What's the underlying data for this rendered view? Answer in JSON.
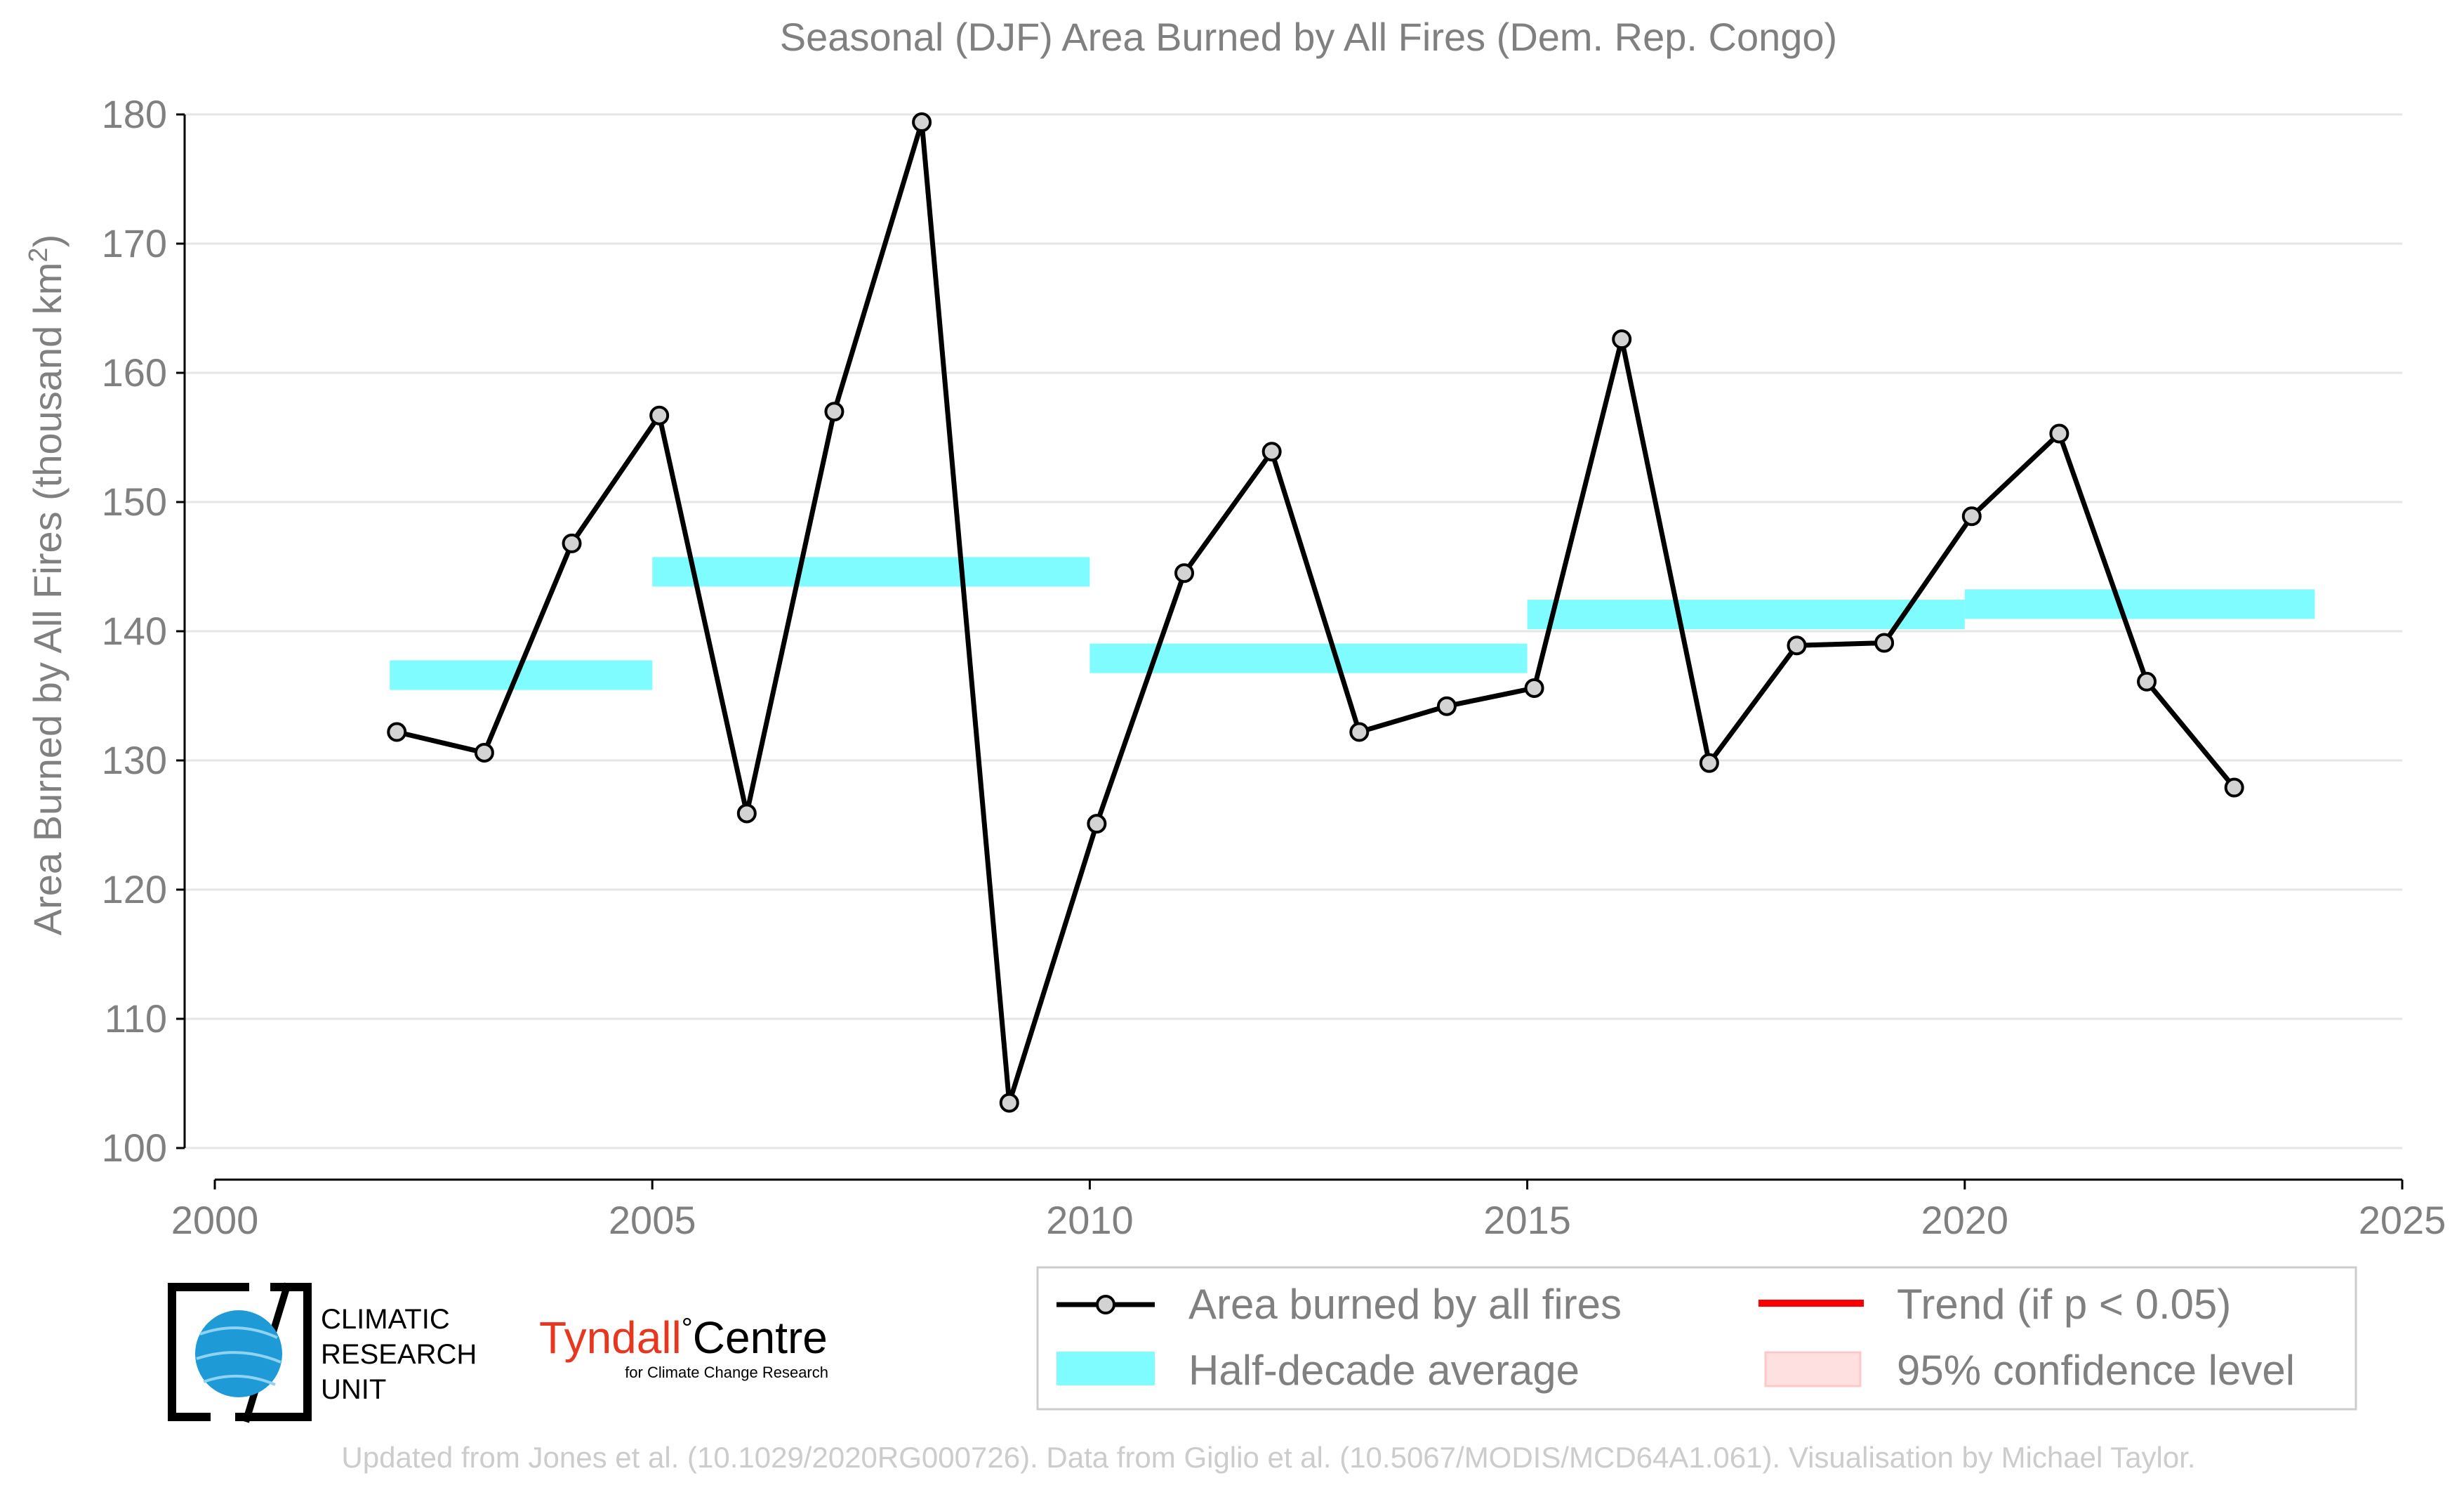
{
  "colors": {
    "text": "#808080",
    "grid": "#e6e6e6",
    "line": "#000000",
    "marker_fill": "#d3d3d3",
    "half_decade": "#7ffcff",
    "trend": "#ff0000",
    "confidence": "#ffe0e0",
    "footer": "#cccccc",
    "cru_blue": "#1e9bd7",
    "tyndall_red": "#e8361f"
  },
  "logos": {
    "cru": [
      "CLIMATIC",
      "RESEARCH",
      "UNIT"
    ],
    "tyndall_main": "Tyndall",
    "tyndall_degree": "°",
    "tyndall_centre": "Centre",
    "tyndall_sub": "for Climate Change Research"
  },
  "footer": "Updated from Jones et al. (10.1029/2020RG000726). Data from Giglio et al. (10.5067/MODIS/MCD64A1.061). Visualisation by Michael Taylor.",
  "chart_data": {
    "type": "line",
    "title": "Seasonal (DJF) Area Burned by All Fires (Dem. Rep. Congo)",
    "ylabel_main": "Area Burned by All Fires (thousand km",
    "ylabel_sup": "2",
    "ylabel_end": ")",
    "xlabel": "",
    "xlim": [
      2000,
      2025
    ],
    "ylim": [
      100,
      180
    ],
    "xticks": [
      2000,
      2005,
      2010,
      2015,
      2020,
      2025
    ],
    "yticks": [
      100,
      110,
      120,
      130,
      140,
      150,
      160,
      170,
      180
    ],
    "grid": "horizontal",
    "legend_position": "bottom-right",
    "series": [
      {
        "name": "Area burned by all fires",
        "x": [
          2002,
          2003,
          2004,
          2005,
          2006,
          2007,
          2008,
          2009,
          2010,
          2011,
          2012,
          2013,
          2014,
          2015,
          2016,
          2017,
          2018,
          2019,
          2020,
          2021,
          2022,
          2023
        ],
        "y": [
          132.2,
          130.6,
          146.8,
          156.7,
          125.9,
          157.0,
          179.4,
          103.5,
          125.1,
          144.5,
          153.9,
          132.2,
          134.2,
          135.6,
          162.6,
          129.8,
          138.9,
          139.1,
          148.9,
          155.3,
          136.1,
          127.9
        ]
      }
    ],
    "half_decade_average": [
      {
        "x_start": 2002,
        "x_end": 2005,
        "y": 136.6
      },
      {
        "x_start": 2005,
        "x_end": 2010,
        "y": 144.6
      },
      {
        "x_start": 2010,
        "x_end": 2015,
        "y": 137.9
      },
      {
        "x_start": 2015,
        "x_end": 2020,
        "y": 141.3
      },
      {
        "x_start": 2020,
        "x_end": 2024,
        "y": 142.1
      }
    ],
    "legend": [
      {
        "key": "series",
        "label": "Area burned by all fires"
      },
      {
        "key": "trend",
        "label": "Trend (if p < 0.05)"
      },
      {
        "key": "half_decade",
        "label": "Half-decade average"
      },
      {
        "key": "confidence",
        "label": "95% confidence level"
      }
    ]
  }
}
